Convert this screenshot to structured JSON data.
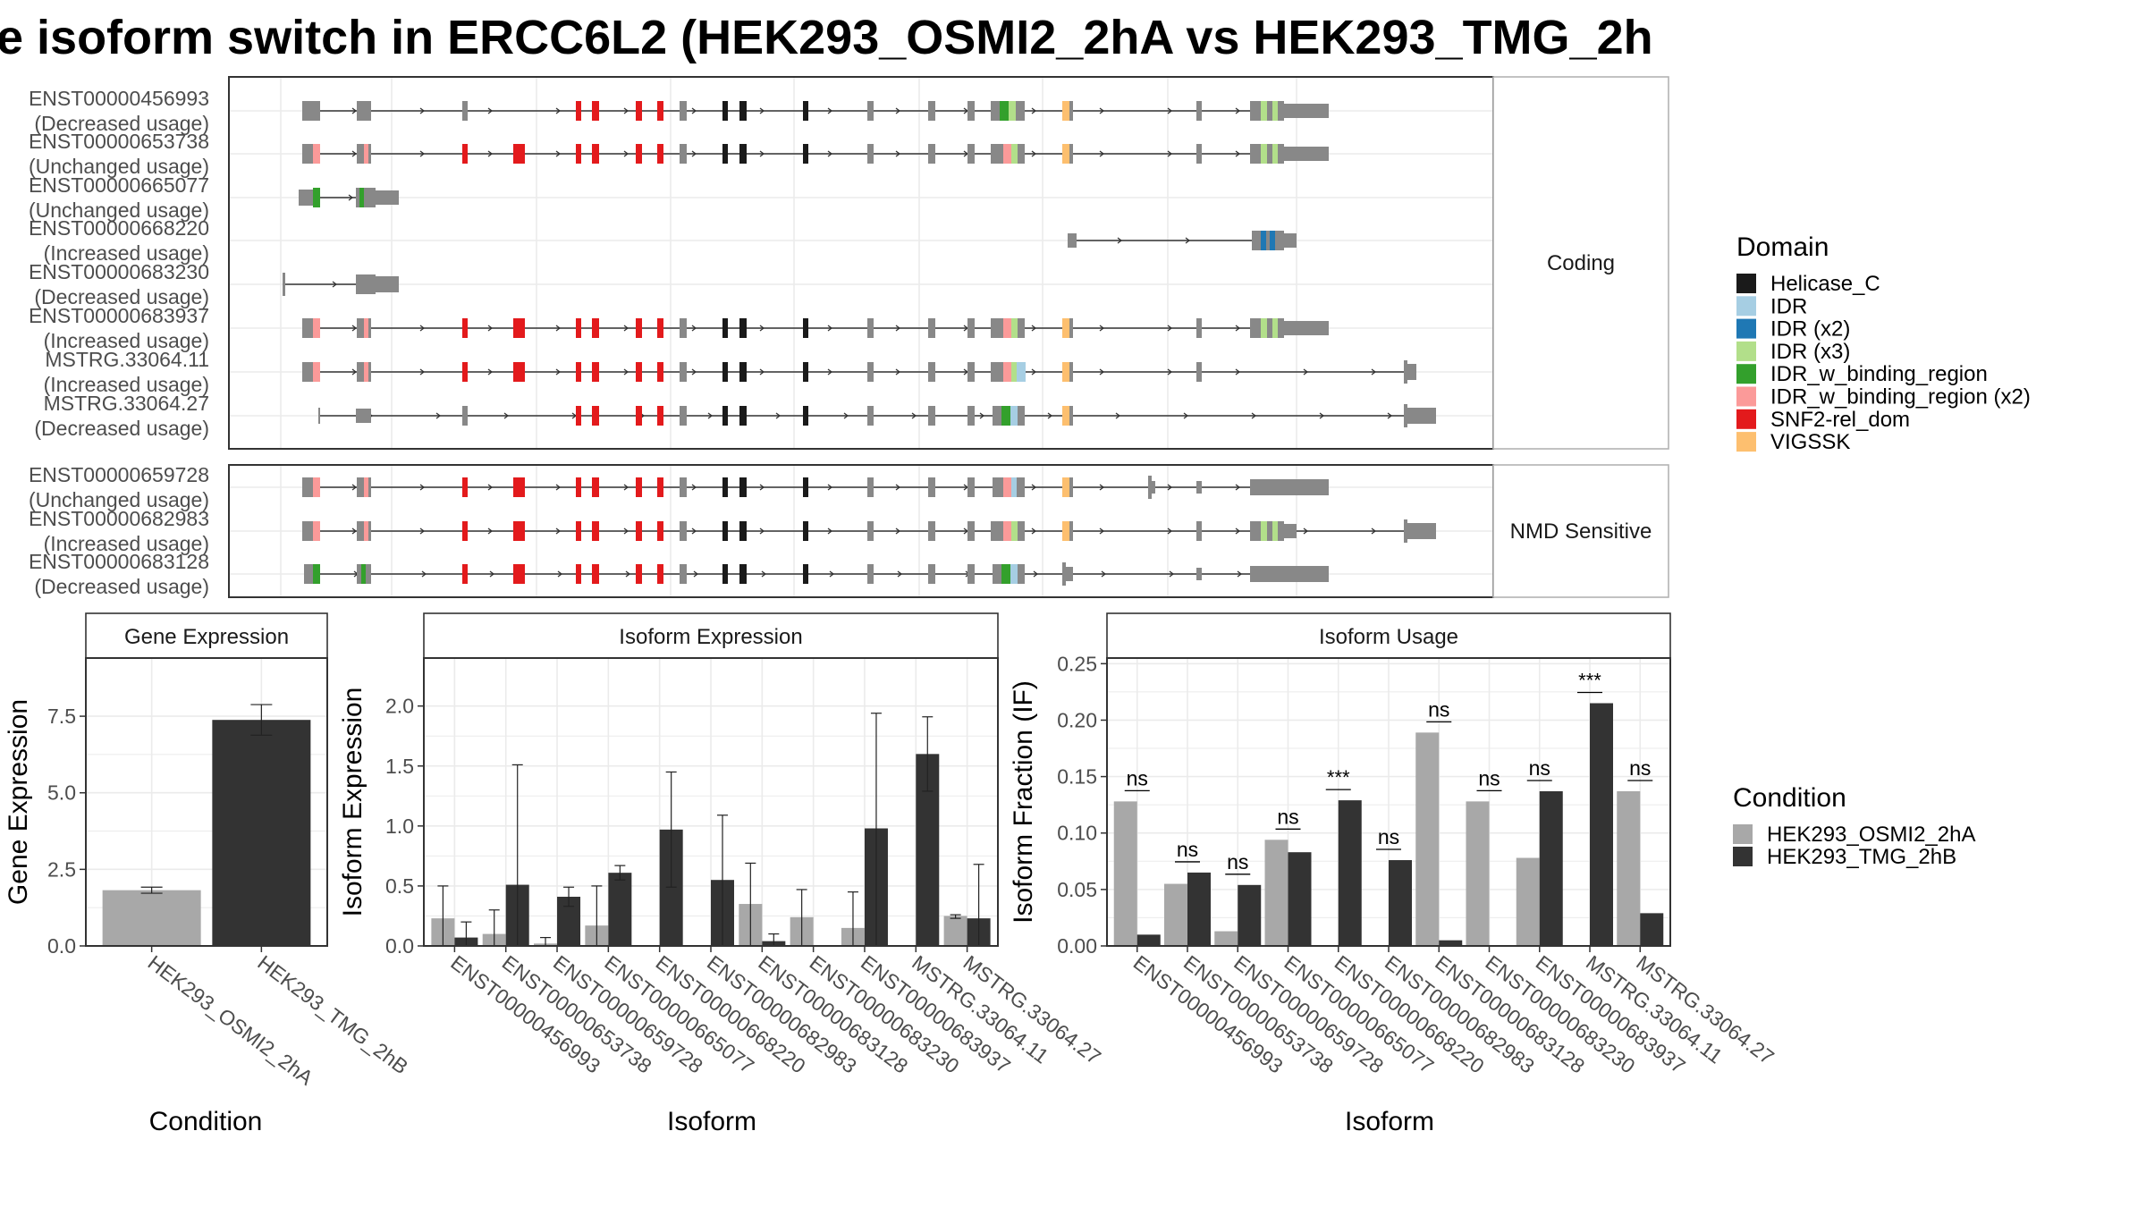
{
  "title": "e isoform switch in ERCC6L2 (HEK293_OSMI2_2hA vs HEK293_TMG_2h",
  "structure": {
    "coding_strip": "Coding",
    "nmd_strip": "NMD Sensitive",
    "coding": [
      {
        "id": "ENST00000456993",
        "usage": "(Decreased usage)"
      },
      {
        "id": "ENST00000653738",
        "usage": "(Unchanged usage)"
      },
      {
        "id": "ENST00000665077",
        "usage": "(Unchanged usage)"
      },
      {
        "id": "ENST00000668220",
        "usage": "(Increased usage)"
      },
      {
        "id": "ENST00000683230",
        "usage": "(Decreased usage)"
      },
      {
        "id": "ENST00000683937",
        "usage": "(Increased usage)"
      },
      {
        "id": "MSTRG.33064.11",
        "usage": "(Increased usage)"
      },
      {
        "id": "MSTRG.33064.27",
        "usage": "(Decreased usage)"
      }
    ],
    "nmd": [
      {
        "id": "ENST00000659728",
        "usage": "(Unchanged usage)"
      },
      {
        "id": "ENST00000682983",
        "usage": "(Increased usage)"
      },
      {
        "id": "ENST00000683128",
        "usage": "(Decreased usage)"
      }
    ]
  },
  "legend_domain": {
    "title": "Domain",
    "items": [
      {
        "label": "Helicase_C",
        "color": "#1a1a1a"
      },
      {
        "label": "IDR",
        "color": "#a6cee3"
      },
      {
        "label": "IDR (x2)",
        "color": "#1f78b4"
      },
      {
        "label": "IDR (x3)",
        "color": "#b2df8a"
      },
      {
        "label": "IDR_w_binding_region",
        "color": "#33a02c"
      },
      {
        "label": "IDR_w_binding_region (x2)",
        "color": "#fb9a99"
      },
      {
        "label": "SNF2-rel_dom",
        "color": "#e31a1c"
      },
      {
        "label": "VIGSSK",
        "color": "#fdbf6f"
      }
    ]
  },
  "legend_condition": {
    "title": "Condition",
    "items": [
      {
        "label": "HEK293_OSMI2_2hA",
        "color": "#a8a8a8"
      },
      {
        "label": "HEK293_TMG_2hB",
        "color": "#333333"
      }
    ]
  },
  "chart_data": [
    {
      "type": "bar",
      "title": "Gene Expression",
      "xlabel": "Condition",
      "ylabel": "Gene Expression",
      "categories": [
        "HEK293_OSMI2_2hA",
        "HEK293_TMG_2hB"
      ],
      "values": [
        1.82,
        7.38
      ],
      "errors": [
        [
          1.72,
          1.92
        ],
        [
          6.88,
          7.88
        ]
      ],
      "ylim": [
        0,
        9.4
      ],
      "yticks": [
        "0.0",
        "2.5",
        "5.0",
        "7.5"
      ]
    },
    {
      "type": "bar",
      "title": "Isoform Expression",
      "xlabel": "Isoform",
      "ylabel": "Isoform Expression",
      "ylim": [
        0,
        2.4
      ],
      "yticks": [
        "0.0",
        "0.5",
        "1.0",
        "1.5",
        "2.0"
      ],
      "categories": [
        "ENST00000456993",
        "ENST00000653738",
        "ENST00000659728",
        "ENST00000665077",
        "ENST00000668220",
        "ENST00000682983",
        "ENST00000683128",
        "ENST00000683230",
        "ENST00000683937",
        "MSTRG.33064.11",
        "MSTRG.33064.27"
      ],
      "series": [
        {
          "name": "HEK293_OSMI2_2hA",
          "values": [
            0.23,
            0.1,
            0.02,
            0.17,
            0.0,
            0.0,
            0.35,
            0.24,
            0.15,
            0.0,
            0.25
          ],
          "errors": [
            [
              0,
              0.5
            ],
            [
              0,
              0.3
            ],
            [
              0,
              0.07
            ],
            [
              0,
              0.5
            ],
            null,
            null,
            [
              0,
              0.69
            ],
            [
              0,
              0.47
            ],
            [
              0,
              0.45
            ],
            null,
            [
              0.23,
              0.26
            ]
          ]
        },
        {
          "name": "HEK293_TMG_2hB",
          "values": [
            0.07,
            0.51,
            0.41,
            0.61,
            0.97,
            0.55,
            0.04,
            0.0,
            0.98,
            1.6,
            0.23
          ],
          "errors": [
            [
              0,
              0.2
            ],
            [
              0,
              1.51
            ],
            [
              0.33,
              0.49
            ],
            [
              0.55,
              0.67
            ],
            [
              0.49,
              1.45
            ],
            [
              0,
              1.09
            ],
            [
              0,
              0.1
            ],
            null,
            [
              0,
              1.94
            ],
            [
              1.29,
              1.91
            ],
            [
              0,
              0.68
            ]
          ]
        }
      ]
    },
    {
      "type": "bar",
      "title": "Isoform Usage",
      "xlabel": "Isoform",
      "ylabel": "Isoform Fraction (IF)",
      "ylim": [
        0,
        0.255
      ],
      "yticks": [
        "0.00",
        "0.05",
        "0.10",
        "0.15",
        "0.20",
        "0.25"
      ],
      "categories": [
        "ENST00000456993",
        "ENST00000653738",
        "ENST00000659728",
        "ENST00000665077",
        "ENST00000668220",
        "ENST00000682983",
        "ENST00000683128",
        "ENST00000683230",
        "ENST00000683937",
        "MSTRG.33064.11",
        "MSTRG.33064.27"
      ],
      "series": [
        {
          "name": "HEK293_OSMI2_2hA",
          "values": [
            0.128,
            0.055,
            0.013,
            0.094,
            0.0,
            0.0,
            0.189,
            0.128,
            0.078,
            0.0,
            0.137
          ]
        },
        {
          "name": "HEK293_TMG_2hB",
          "values": [
            0.01,
            0.065,
            0.054,
            0.083,
            0.129,
            0.076,
            0.005,
            0.0,
            0.137,
            0.215,
            0.029
          ]
        }
      ],
      "annotations": [
        "ns",
        "ns",
        "ns",
        "ns",
        "***",
        "ns",
        "ns",
        "ns",
        "ns",
        "***",
        "ns"
      ]
    }
  ]
}
